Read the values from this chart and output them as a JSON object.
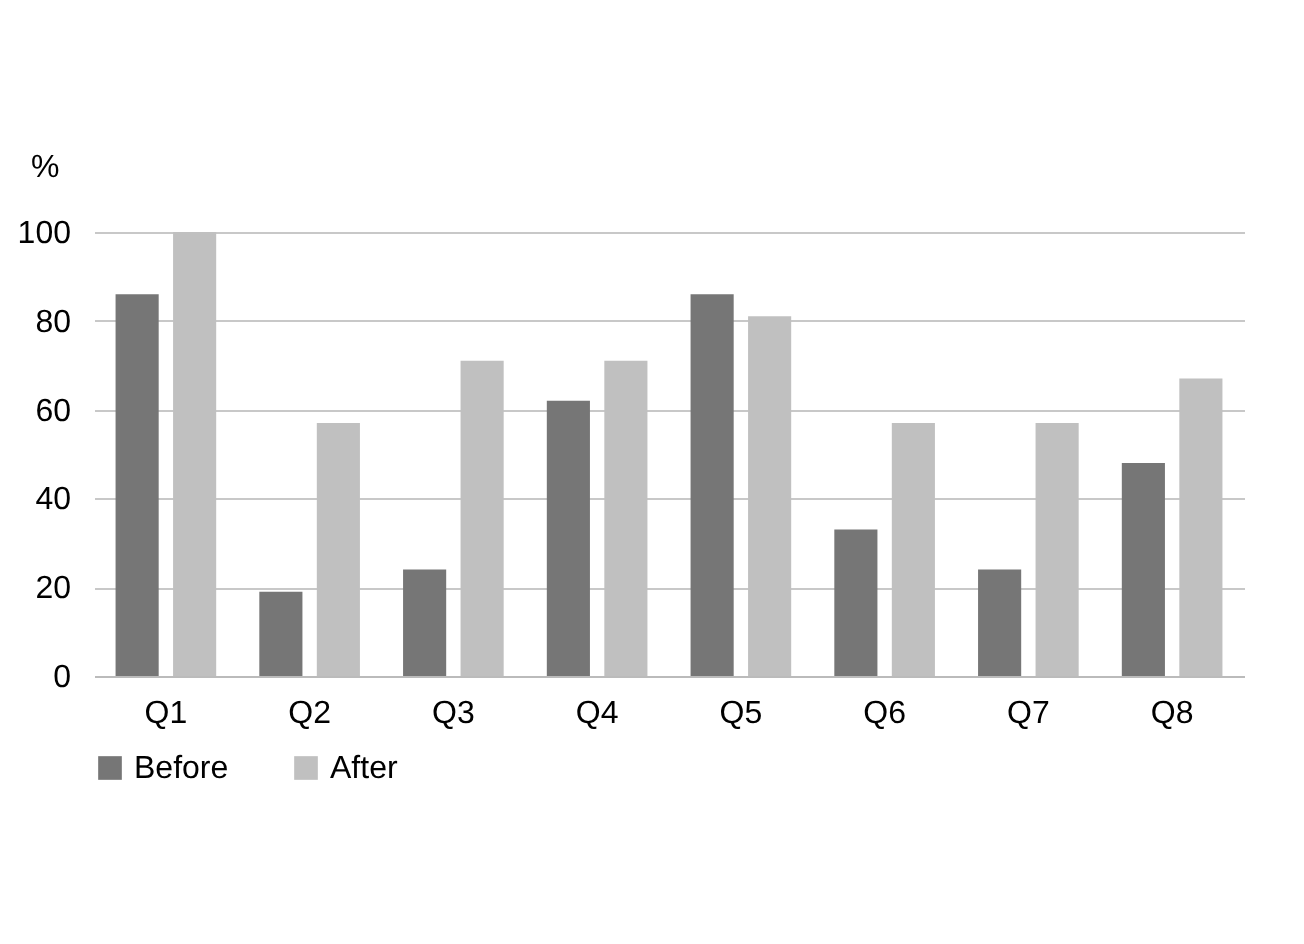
{
  "chart_data": {
    "type": "bar",
    "ylabel": "%",
    "categories": [
      "Q1",
      "Q2",
      "Q3",
      "Q4",
      "Q5",
      "Q6",
      "Q7",
      "Q8"
    ],
    "series": [
      {
        "name": "Before",
        "color": "#767676",
        "values": [
          86,
          19,
          24,
          62,
          86,
          33,
          24,
          48
        ]
      },
      {
        "name": "After",
        "color": "#c0c0c0",
        "values": [
          100,
          57,
          71,
          71,
          81,
          57,
          57,
          67
        ]
      }
    ],
    "ylim": [
      0,
      100
    ],
    "yticks": [
      0,
      20,
      40,
      60,
      80,
      100
    ],
    "grid": "y",
    "legend": "bottom"
  }
}
